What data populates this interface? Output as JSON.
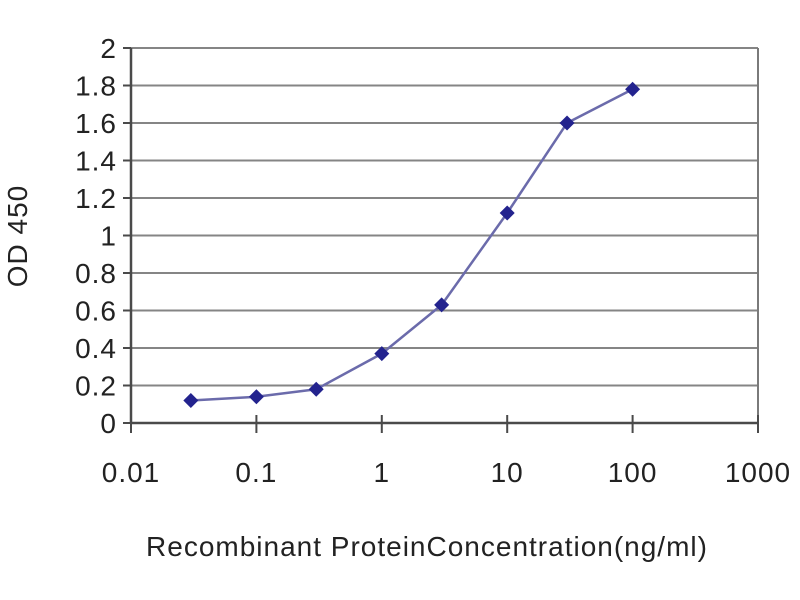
{
  "chart_data": {
    "type": "line",
    "title": "",
    "xlabel": "Recombinant ProteinConcentration(ng/ml)",
    "ylabel": "OD 450",
    "x_scale": "log",
    "xlim": [
      0.01,
      1000
    ],
    "ylim": [
      0,
      2
    ],
    "x_ticks": [
      0.01,
      0.1,
      1,
      10,
      100,
      1000
    ],
    "x_tick_labels": [
      "0.01",
      "0.1",
      "1",
      "10",
      "100",
      "1000"
    ],
    "y_tick_step": 0.2,
    "y_ticks": [
      0,
      0.2,
      0.4,
      0.6,
      0.8,
      1,
      1.2,
      1.4,
      1.6,
      1.8,
      2
    ],
    "y_tick_labels": [
      "0",
      "0.2",
      "0.4",
      "0.6",
      "0.8",
      "1",
      "1.2",
      "1.4",
      "1.6",
      "1.8",
      "2"
    ],
    "grid": "horizontal",
    "legend": "none",
    "series": [
      {
        "marker": "diamond",
        "x": [
          0.03,
          0.1,
          0.3,
          1,
          3,
          10,
          30,
          100
        ],
        "y": [
          0.12,
          0.14,
          0.18,
          0.37,
          0.63,
          1.12,
          1.6,
          1.78
        ]
      }
    ],
    "colors": {
      "line": "#6b6bab",
      "marker": "#23238e",
      "gridline": "#858585",
      "axis": "#4a4a4a",
      "plot_border": "#7a7a7a",
      "text": "#222222",
      "background": "#ffffff"
    }
  }
}
